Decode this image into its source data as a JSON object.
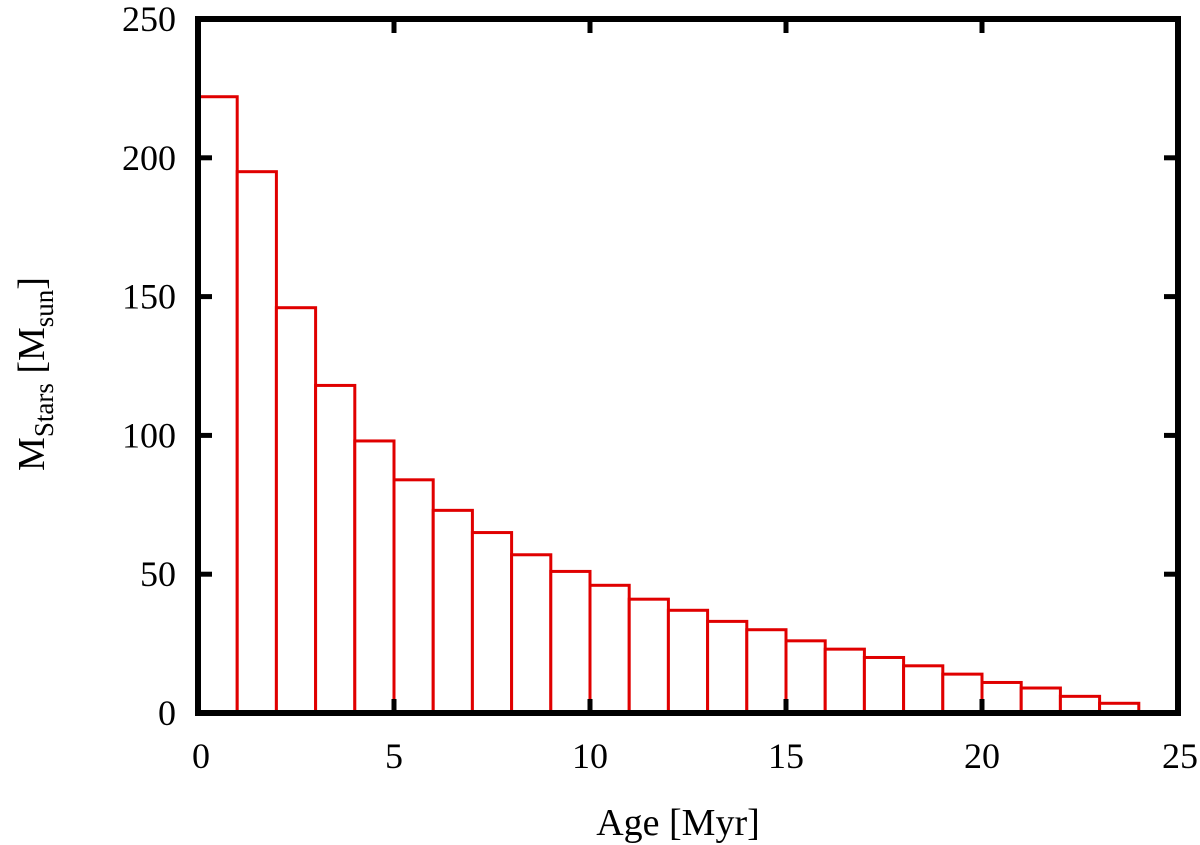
{
  "chart_data": {
    "type": "bar",
    "title": "",
    "xlabel": "Age [Myr]",
    "ylabel": {
      "main": "M",
      "main_sub": "Stars",
      "unit_open": " [M",
      "unit_sub": "sun",
      "unit_close": "]"
    },
    "xlim": [
      0,
      25
    ],
    "ylim": [
      0,
      250
    ],
    "x_ticks": [
      "0",
      "5",
      "10",
      "15",
      "20",
      "25"
    ],
    "y_ticks": [
      "0",
      "50",
      "100",
      "150",
      "200",
      "250"
    ],
    "bin_width": 1,
    "bin_starts": [
      0,
      1,
      2,
      3,
      4,
      5,
      6,
      7,
      8,
      9,
      10,
      11,
      12,
      13,
      14,
      15,
      16,
      17,
      18,
      19,
      20,
      21,
      22,
      23,
      24
    ],
    "values": [
      222,
      195,
      146,
      118,
      98,
      84,
      73,
      65,
      57,
      51,
      46,
      41,
      37,
      33,
      30,
      26,
      23,
      20,
      17,
      14,
      11,
      9,
      6,
      3.5,
      0.5
    ],
    "bar_edge_color": "#e00000",
    "bar_fill_color": "#ffffff",
    "grid": false,
    "legend": "none"
  }
}
